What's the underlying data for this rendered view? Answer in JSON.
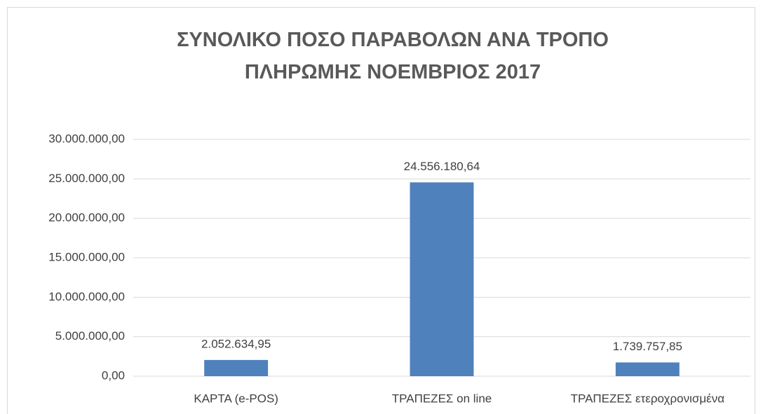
{
  "chart_data": {
    "type": "bar",
    "title": "ΣΥΝΟΛΙΚΟ ΠΟΣΟ ΠΑΡΑΒΟΛΩΝ ΑΝΑ ΤΡΟΠΟ ΠΛΗΡΩΜΗΣ ΝΟΕΜΒΡΙΟΣ 2017",
    "categories": [
      "ΚΑΡΤΑ (e-POS)",
      "ΤΡΑΠΕΖΕΣ on line",
      "ΤΡΑΠΕΖΕΣ ετεροχρονισμένα"
    ],
    "values": [
      2052634.95,
      24556180.64,
      1739757.85
    ],
    "value_labels": [
      "2.052.634,95",
      "24.556.180,64",
      "1.739.757,85"
    ],
    "color": "#4f81bd",
    "ylim": [
      0,
      30000000
    ],
    "yticks": [
      {
        "value": 0,
        "label": "0,00"
      },
      {
        "value": 5000000,
        "label": "5.000.000,00"
      },
      {
        "value": 10000000,
        "label": "10.000.000,00"
      },
      {
        "value": 15000000,
        "label": "15.000.000,00"
      },
      {
        "value": 20000000,
        "label": "20.000.000,00"
      },
      {
        "value": 25000000,
        "label": "25.000.000,00"
      },
      {
        "value": 30000000,
        "label": "30.000.000,00"
      }
    ],
    "grid": true
  }
}
